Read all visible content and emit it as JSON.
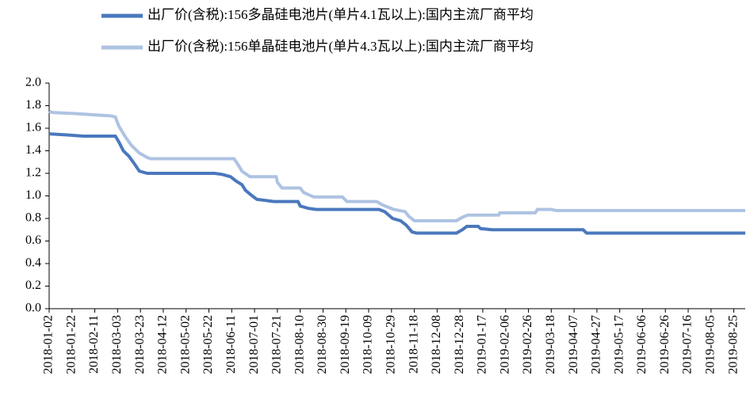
{
  "chart_data": {
    "type": "line",
    "series": [
      {
        "name": "出厂价(含税):156多晶硅电池片(单片4.1瓦以上):国内主流厂商平均",
        "color": "#4a78bd",
        "x": [
          "2018-01-02",
          "2018-01-18",
          "2018-02-01",
          "2018-03-01",
          "2018-03-04",
          "2018-03-08",
          "2018-03-13",
          "2018-03-18",
          "2018-03-22",
          "2018-03-29",
          "2018-05-27",
          "2018-06-03",
          "2018-06-10",
          "2018-06-15",
          "2018-06-20",
          "2018-06-23",
          "2018-06-29",
          "2018-07-03",
          "2018-07-18",
          "2018-08-08",
          "2018-08-10",
          "2018-08-17",
          "2018-08-24",
          "2018-10-18",
          "2018-10-23",
          "2018-10-30",
          "2018-11-06",
          "2018-11-11",
          "2018-11-16",
          "2018-11-20",
          "2018-12-25",
          "2018-12-30",
          "2019-01-03",
          "2019-01-13",
          "2019-01-15",
          "2019-01-25",
          "2019-04-15",
          "2019-04-18",
          "2019-09-04"
        ],
        "values": [
          1.55,
          1.54,
          1.53,
          1.53,
          1.48,
          1.4,
          1.35,
          1.28,
          1.22,
          1.2,
          1.2,
          1.19,
          1.17,
          1.13,
          1.1,
          1.05,
          1.0,
          0.97,
          0.95,
          0.95,
          0.91,
          0.89,
          0.88,
          0.88,
          0.86,
          0.8,
          0.78,
          0.74,
          0.68,
          0.67,
          0.67,
          0.7,
          0.73,
          0.73,
          0.71,
          0.7,
          0.7,
          0.67,
          0.67
        ]
      },
      {
        "name": "出厂价(含税):156单晶硅电池片(单片4.3瓦以上):国内主流厂商平均",
        "color": "#aec3e2",
        "x": [
          "2018-01-02",
          "2018-01-05",
          "2018-01-25",
          "2018-02-08",
          "2018-02-25",
          "2018-03-01",
          "2018-03-04",
          "2018-03-10",
          "2018-03-15",
          "2018-03-22",
          "2018-03-29",
          "2018-04-01",
          "2018-06-13",
          "2018-06-17",
          "2018-06-20",
          "2018-06-27",
          "2018-07-20",
          "2018-07-21",
          "2018-07-25",
          "2018-08-10",
          "2018-08-13",
          "2018-08-22",
          "2018-09-16",
          "2018-09-20",
          "2018-10-16",
          "2018-10-21",
          "2018-10-31",
          "2018-11-10",
          "2018-11-13",
          "2018-11-18",
          "2018-12-25",
          "2018-12-30",
          "2019-01-04",
          "2019-01-31",
          "2019-02-01",
          "2019-03-04",
          "2019-03-06",
          "2019-03-18",
          "2019-03-22",
          "2019-09-04"
        ],
        "values": [
          1.75,
          1.74,
          1.73,
          1.72,
          1.71,
          1.7,
          1.62,
          1.52,
          1.45,
          1.38,
          1.34,
          1.33,
          1.33,
          1.27,
          1.22,
          1.17,
          1.17,
          1.12,
          1.07,
          1.07,
          1.03,
          0.99,
          0.99,
          0.95,
          0.95,
          0.92,
          0.88,
          0.86,
          0.82,
          0.78,
          0.78,
          0.81,
          0.83,
          0.83,
          0.85,
          0.85,
          0.88,
          0.88,
          0.87,
          0.87
        ]
      }
    ],
    "xlim": [
      "2018-01-02",
      "2019-09-04"
    ],
    "xticks": [
      "2018-01-02",
      "2018-01-22",
      "2018-02-11",
      "2018-03-03",
      "2018-03-23",
      "2018-04-12",
      "2018-05-02",
      "2018-05-22",
      "2018-06-11",
      "2018-07-01",
      "2018-07-21",
      "2018-08-10",
      "2018-08-30",
      "2018-09-19",
      "2018-10-09",
      "2018-10-29",
      "2018-11-18",
      "2018-12-08",
      "2018-12-28",
      "2019-01-17",
      "2019-02-06",
      "2019-02-26",
      "2019-03-18",
      "2019-04-07",
      "2019-04-27",
      "2019-05-17",
      "2019-06-06",
      "2019-06-26",
      "2019-07-16",
      "2019-08-05",
      "2019-08-25"
    ],
    "ylim": [
      0,
      2.0
    ],
    "yticks": [
      {
        "value": 0,
        "label": "0.0"
      },
      0.2,
      0.4,
      0.6,
      0.8,
      {
        "value": 1.0,
        "label": "1.0"
      },
      1.2,
      1.4,
      1.6,
      1.8,
      {
        "value": 2.0,
        "label": "2.0"
      }
    ]
  }
}
